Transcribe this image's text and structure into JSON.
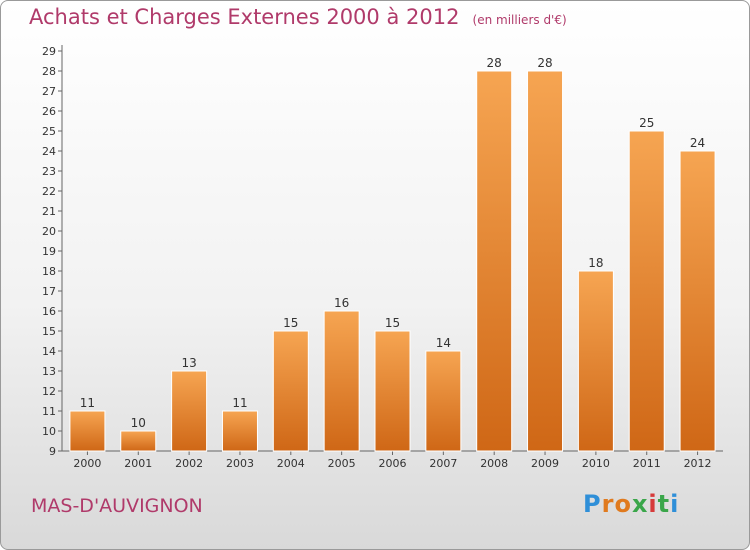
{
  "title": "Achats et Charges Externes 2000 à 2012",
  "subtitle": "(en milliers d'€)",
  "commune": "MAS-D'AUVIGNON",
  "logo": {
    "letters": [
      "P",
      "r",
      "o",
      "x",
      "i",
      "t",
      "i"
    ],
    "colors": [
      "#2f8fd8",
      "#e07a1e",
      "#e07a1e",
      "#3aa64a",
      "#d63a3a",
      "#3aa64a",
      "#2f8fd8"
    ]
  },
  "colors": {
    "bar_top": "#f6a552",
    "bar_bottom": "#cf6716",
    "label": "#b03a6a",
    "text": "#333333"
  },
  "chart_data": {
    "type": "bar",
    "title": "Achats et Charges Externes 2000 à 2012",
    "subtitle": "(en milliers d'€)",
    "categories": [
      "2000",
      "2001",
      "2002",
      "2003",
      "2004",
      "2005",
      "2006",
      "2007",
      "2008",
      "2009",
      "2010",
      "2011",
      "2012"
    ],
    "values": [
      11,
      10,
      13,
      11,
      15,
      16,
      15,
      14,
      28,
      28,
      18,
      25,
      24
    ],
    "ylim": [
      9,
      29
    ],
    "yticks": [
      "9",
      "10",
      "11",
      "12",
      "13",
      "14",
      "15",
      "16",
      "17",
      "18",
      "19",
      "20",
      "21",
      "22",
      "23",
      "24",
      "25",
      "26",
      "27",
      "28",
      "29"
    ],
    "grid": false,
    "legend": "none",
    "xlabel": "",
    "ylabel": ""
  }
}
